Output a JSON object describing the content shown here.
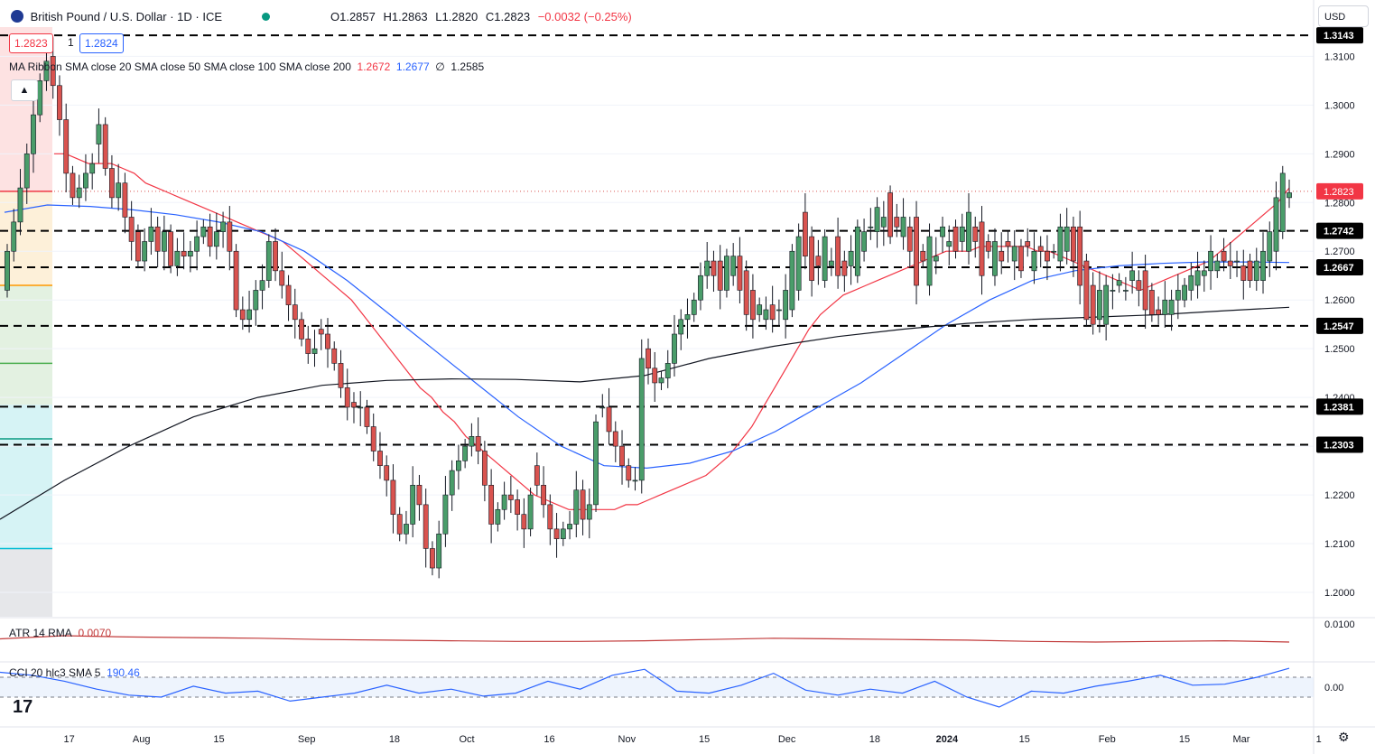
{
  "header": {
    "symbol_title": "British Pound / U.S. Dollar · 1D · ICE",
    "open": "O1.2857",
    "high": "H1.2863",
    "low": "L1.2820",
    "close": "C1.2823",
    "change": "−0.0032 (−0.25%)",
    "sell_price": "1.2823",
    "spread": "1",
    "buy_price": "1.2824"
  },
  "currency_selector": "USD",
  "sma_legend": {
    "label": "MA Ribbon SMA close 20 SMA close 50 SMA close 100 SMA close 200",
    "v1": "1.2672",
    "v2": "1.2677",
    "v3": "∅",
    "v4": "1.2585"
  },
  "atr_legend": {
    "label": "ATR 14 RMA",
    "value": "0.0070"
  },
  "cci_legend": {
    "label": "CCI 20 hlc3 SMA 5",
    "value": "190.46"
  },
  "colors": {
    "up": "#26a69a",
    "up_fill": "#4a9d6a",
    "down": "#d9534f",
    "sma20": "#f23645",
    "sma50": "#2962ff",
    "sma200": "#131722",
    "atr": "#c23b3b",
    "cci": "#2962ff"
  },
  "icons": [
    "flag-icon",
    "status-dot-icon",
    "chevron-up-icon",
    "tradingview-logo-icon",
    "gear-icon"
  ],
  "chart_data": {
    "type": "candlestick",
    "y_range": [
      1.195,
      1.316
    ],
    "price_ticks": [
      "1.3100",
      "1.3000",
      "1.2900",
      "1.2800",
      "1.2700",
      "1.2600",
      "1.2500",
      "1.2400",
      "1.2300",
      "1.2200",
      "1.2100",
      "1.2000"
    ],
    "price_tick_values": [
      1.31,
      1.3,
      1.29,
      1.28,
      1.27,
      1.26,
      1.25,
      1.24,
      1.23,
      1.22,
      1.21,
      1.2
    ],
    "x_labels": [
      "17",
      "Aug",
      "15",
      "Sep",
      "18",
      "Oct",
      "16",
      "Nov",
      "15",
      "Dec",
      "18",
      "2024",
      "15",
      "Feb",
      "15",
      "Mar",
      "1"
    ],
    "x_label_days": [
      17,
      31,
      46,
      63,
      80,
      94,
      110,
      125,
      140,
      156,
      173,
      187,
      202,
      218,
      233,
      244,
      259
    ],
    "levels": [
      {
        "value": 1.3143,
        "label": "1.3143"
      },
      {
        "value": 1.2742,
        "label": "1.2742"
      },
      {
        "value": 1.2667,
        "label": "1.2667"
      },
      {
        "value": 1.2547,
        "label": "1.2547"
      },
      {
        "value": 1.2381,
        "label": "1.2381"
      },
      {
        "value": 1.2303,
        "label": "1.2303"
      }
    ],
    "current_price": 1.2823,
    "closes": [
      1.27,
      1.276,
      1.283,
      1.29,
      1.298,
      1.305,
      1.309,
      1.304,
      1.297,
      1.286,
      1.281,
      1.283,
      1.286,
      1.288,
      1.296,
      1.287,
      1.281,
      1.284,
      1.277,
      1.272,
      1.268,
      1.272,
      1.275,
      1.27,
      1.274,
      1.267,
      1.27,
      1.269,
      1.27,
      1.273,
      1.275,
      1.271,
      1.274,
      1.276,
      1.27,
      1.258,
      1.256,
      1.258,
      1.262,
      1.264,
      1.272,
      1.266,
      1.263,
      1.259,
      1.256,
      1.252,
      1.249,
      1.25,
      1.253,
      1.25,
      1.247,
      1.242,
      1.238,
      1.238,
      1.238,
      1.234,
      1.229,
      1.226,
      1.223,
      1.216,
      1.212,
      1.214,
      1.222,
      1.218,
      1.209,
      1.205,
      1.212,
      1.22,
      1.225,
      1.227,
      1.23,
      1.232,
      1.229,
      1.222,
      1.214,
      1.217,
      1.22,
      1.219,
      1.216,
      1.213,
      1.22,
      1.222,
      1.218,
      1.213,
      1.211,
      1.213,
      1.214,
      1.221,
      1.215,
      1.218,
      1.235,
      1.238,
      1.233,
      1.23,
      1.226,
      1.223,
      1.223,
      1.248,
      1.246,
      1.243,
      1.244,
      1.247,
      1.253,
      1.256,
      1.257,
      1.26,
      1.265,
      1.268,
      1.265,
      1.262,
      1.269,
      1.269,
      1.262,
      1.257,
      1.256,
      1.259,
      1.258,
      1.256,
      1.258,
      1.262,
      1.27,
      1.273,
      1.269,
      1.264,
      1.267,
      1.273,
      1.268,
      1.265,
      1.265,
      1.27,
      1.275,
      1.274,
      1.275,
      1.279,
      1.277,
      1.273,
      1.275,
      1.277,
      1.27,
      1.263,
      1.268,
      1.273,
      1.269,
      1.275,
      1.272,
      1.27,
      1.275,
      1.278,
      1.272,
      1.265,
      1.27,
      1.272,
      1.268,
      1.271,
      1.271,
      1.266,
      1.271,
      1.27,
      1.27,
      1.268,
      1.27,
      1.275,
      1.275,
      1.268,
      1.263,
      1.256,
      1.255,
      1.262,
      1.263,
      1.262,
      1.264,
      1.262,
      1.266,
      1.262,
      1.258,
      1.257,
      1.257,
      1.26,
      1.26,
      1.262,
      1.263,
      1.265,
      1.266,
      1.266,
      1.27,
      1.268,
      1.268,
      1.267,
      1.268,
      1.264,
      1.264,
      1.268,
      1.27,
      1.274,
      1.281,
      1.286,
      1.282
    ],
    "opens": [
      1.262,
      1.27,
      1.276,
      1.283,
      1.29,
      1.298,
      1.305,
      1.31,
      1.304,
      1.297,
      1.286,
      1.281,
      1.283,
      1.286,
      1.292,
      1.296,
      1.287,
      1.281,
      1.284,
      1.277,
      1.274,
      1.268,
      1.272,
      1.275,
      1.27,
      1.274,
      1.267,
      1.27,
      1.269,
      1.27,
      1.273,
      1.275,
      1.271,
      1.274,
      1.276,
      1.27,
      1.258,
      1.256,
      1.258,
      1.262,
      1.264,
      1.272,
      1.266,
      1.263,
      1.259,
      1.256,
      1.252,
      1.249,
      1.254,
      1.253,
      1.25,
      1.247,
      1.242,
      1.239,
      1.238,
      1.238,
      1.234,
      1.229,
      1.226,
      1.223,
      1.216,
      1.212,
      1.214,
      1.222,
      1.218,
      1.209,
      1.205,
      1.212,
      1.22,
      1.225,
      1.227,
      1.23,
      1.232,
      1.229,
      1.222,
      1.214,
      1.217,
      1.22,
      1.219,
      1.216,
      1.213,
      1.226,
      1.222,
      1.218,
      1.213,
      1.211,
      1.213,
      1.214,
      1.221,
      1.215,
      1.218,
      1.238,
      1.238,
      1.233,
      1.23,
      1.226,
      1.223,
      1.223,
      1.25,
      1.246,
      1.243,
      1.244,
      1.247,
      1.253,
      1.256,
      1.257,
      1.26,
      1.265,
      1.268,
      1.268,
      1.262,
      1.265,
      1.269,
      1.266,
      1.262,
      1.257,
      1.256,
      1.259,
      1.258,
      1.256,
      1.258,
      1.262,
      1.278,
      1.273,
      1.269,
      1.264,
      1.267,
      1.273,
      1.268,
      1.267,
      1.265,
      1.27,
      1.275,
      1.274,
      1.275,
      1.282,
      1.277,
      1.273,
      1.275,
      1.277,
      1.27,
      1.263,
      1.268,
      1.273,
      1.271,
      1.275,
      1.272,
      1.27,
      1.275,
      1.276,
      1.272,
      1.265,
      1.27,
      1.272,
      1.268,
      1.271,
      1.272,
      1.266,
      1.271,
      1.27,
      1.27,
      1.268,
      1.27,
      1.275,
      1.275,
      1.268,
      1.263,
      1.256,
      1.255,
      1.262,
      1.263,
      1.262,
      1.264,
      1.264,
      1.266,
      1.262,
      1.258,
      1.257,
      1.257,
      1.26,
      1.26,
      1.262,
      1.263,
      1.265,
      1.266,
      1.266,
      1.27,
      1.268,
      1.268,
      1.267,
      1.268,
      1.264,
      1.264,
      1.268,
      1.27,
      1.274,
      1.281,
      1.286
    ],
    "sma20": [
      1.29,
      1.29,
      1.289,
      1.288,
      1.288,
      1.288,
      1.287,
      1.286,
      1.284,
      1.283,
      1.282,
      1.281,
      1.28,
      1.279,
      1.278,
      1.277,
      1.276,
      1.275,
      1.274,
      1.273,
      1.272,
      1.27,
      1.268,
      1.266,
      1.264,
      1.262,
      1.26,
      1.257,
      1.254,
      1.251,
      1.248,
      1.245,
      1.242,
      1.24,
      1.237,
      1.235,
      1.232,
      1.23,
      1.228,
      1.226,
      1.224,
      1.222,
      1.22,
      1.219,
      1.218,
      1.217,
      1.217,
      1.217,
      1.217,
      1.217,
      1.218,
      1.218,
      1.219,
      1.22,
      1.221,
      1.222,
      1.223,
      1.224,
      1.226,
      1.228,
      1.231,
      1.234,
      1.238,
      1.242,
      1.246,
      1.25,
      1.254,
      1.257,
      1.259,
      1.261,
      1.262,
      1.263,
      1.264,
      1.265,
      1.266,
      1.267,
      1.268,
      1.269,
      1.27,
      1.27,
      1.27,
      1.271,
      1.271,
      1.271,
      1.271,
      1.271,
      1.27,
      1.27,
      1.269,
      1.268,
      1.267,
      1.266,
      1.265,
      1.264,
      1.263,
      1.262,
      1.263,
      1.264,
      1.265,
      1.266,
      1.267,
      1.268,
      1.27,
      1.272,
      1.274,
      1.276,
      1.278,
      1.28,
      1.283
    ],
    "sma50": [
      1.278,
      1.2795,
      1.2792,
      1.2785,
      1.2775,
      1.276,
      1.274,
      1.27,
      1.264,
      1.257,
      1.25,
      1.243,
      1.236,
      1.23,
      1.226,
      1.2255,
      1.2265,
      1.229,
      1.233,
      1.238,
      1.243,
      1.249,
      1.255,
      1.26,
      1.264,
      1.266,
      1.267,
      1.2675,
      1.2678,
      1.2678,
      1.2677
    ],
    "sma200": [
      1.215,
      1.223,
      1.23,
      1.236,
      1.24,
      1.2425,
      1.2435,
      1.2438,
      1.2437,
      1.2432,
      1.2445,
      1.248,
      1.2505,
      1.2525,
      1.254,
      1.2552,
      1.256,
      1.2565,
      1.257,
      1.2578,
      1.2585
    ],
    "atr": [
      0.0075,
      0.008,
      0.0078,
      0.0077,
      0.0076,
      0.0074,
      0.0073,
      0.0072,
      0.0071,
      0.0071,
      0.0072,
      0.0074,
      0.0076,
      0.0075,
      0.0074,
      0.0073,
      0.0071,
      0.007,
      0.0071,
      0.0072,
      0.007
    ],
    "cci": [
      150,
      120,
      60,
      -20,
      -80,
      -100,
      10,
      -60,
      -40,
      -140,
      -100,
      -60,
      20,
      -60,
      -20,
      -90,
      -60,
      60,
      -20,
      120,
      180,
      -40,
      -60,
      20,
      140,
      -30,
      -80,
      -20,
      -60,
      60,
      -100,
      -200,
      -40,
      -60,
      10,
      60,
      120,
      20,
      30,
      100,
      190
    ],
    "cci_levels": [
      100,
      -100
    ],
    "cci_ticks": [
      "0.00"
    ],
    "atr_ticks": [
      "0.0100"
    ]
  }
}
